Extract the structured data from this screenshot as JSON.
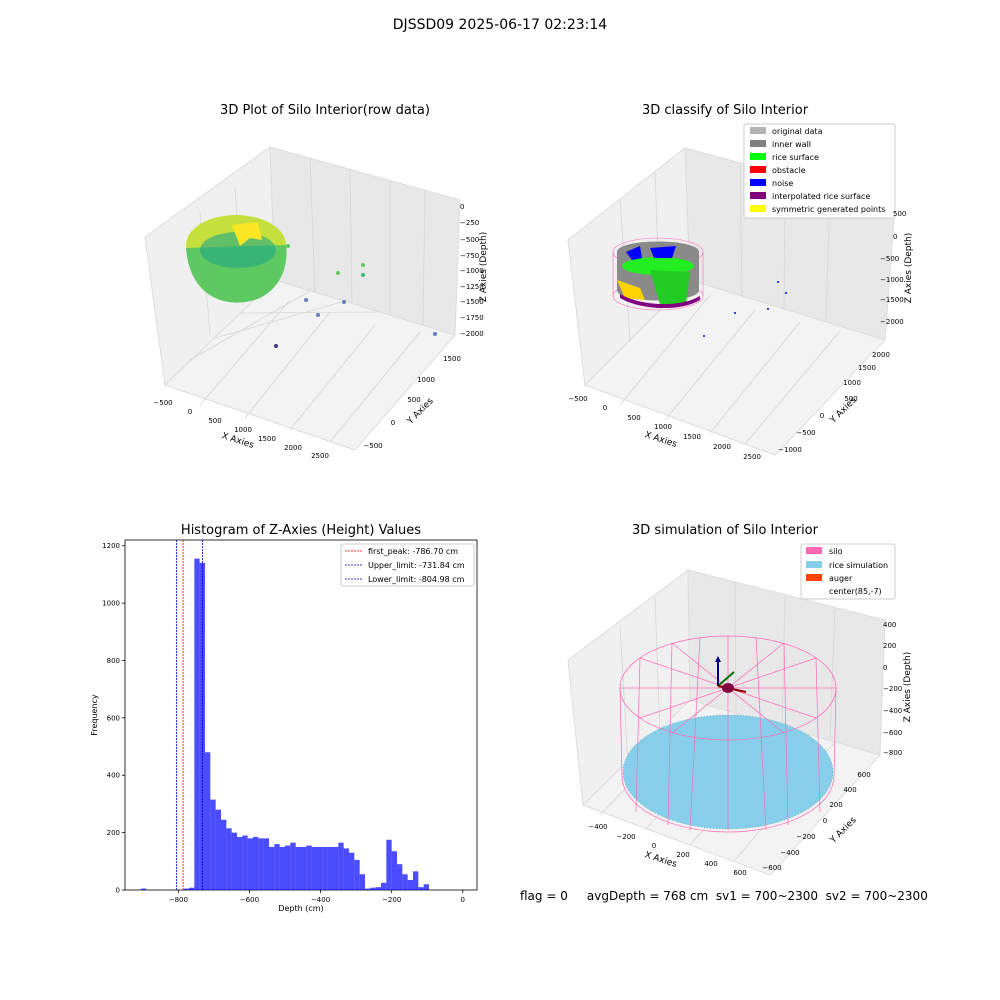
{
  "suptitle": "DJSSD09 2025-06-17 02:23:14",
  "panel1": {
    "title": "3D Plot of Silo Interior(row data)",
    "xlabel": "X Axies",
    "ylabel": "Y Axies",
    "zlabel": "Z Axies (Depth)",
    "xticks": [
      "−500",
      "0",
      "500",
      "1000",
      "1500",
      "2000",
      "2500"
    ],
    "yticks": [
      "−500",
      "0",
      "500",
      "1000",
      "1500"
    ],
    "zticks": [
      "0",
      "−250",
      "−500",
      "−750",
      "−1000",
      "−1250",
      "−1500",
      "−1750",
      "−2000"
    ]
  },
  "panel2": {
    "title": "3D classify of Silo Interior",
    "xlabel": "X Axies",
    "ylabel": "Y Axies",
    "zlabel": "Z Axies (Depth)",
    "xticks": [
      "−500",
      "0",
      "500",
      "1000",
      "1500",
      "2000",
      "2500"
    ],
    "yticks": [
      "−1000",
      "−500",
      "0",
      "500",
      "1000",
      "1500",
      "2000"
    ],
    "zticks": [
      "500",
      "0",
      "−500",
      "−1000",
      "−1500",
      "−2000"
    ],
    "legend": [
      {
        "label": "original data",
        "color": "#b3b3b3"
      },
      {
        "label": "inner wall",
        "color": "#808080"
      },
      {
        "label": "rice surface",
        "color": "#00ff00"
      },
      {
        "label": "obstacle",
        "color": "#ff0000"
      },
      {
        "label": "noise",
        "color": "#0000ff"
      },
      {
        "label": "interpolated rice surface",
        "color": "#800080"
      },
      {
        "label": "symmetric generated points",
        "color": "#ffff00"
      }
    ]
  },
  "panel4": {
    "title": "3D simulation of Silo Interior",
    "xlabel": "X Axies",
    "ylabel": "Y Axies",
    "zlabel": "Z Axies (Depth)",
    "xticks": [
      "−400",
      "−200",
      "0",
      "200",
      "400",
      "600"
    ],
    "yticks": [
      "−600",
      "−400",
      "−200",
      "0",
      "200",
      "400",
      "600"
    ],
    "zticks": [
      "400",
      "200",
      "0",
      "−200",
      "−400",
      "−600",
      "−800"
    ],
    "legend": [
      {
        "label": "silo",
        "color": "#ff69b4"
      },
      {
        "label": "rice simulation",
        "color": "#87ceeb"
      },
      {
        "label": "auger",
        "color": "#ff4500"
      },
      {
        "label": "center(85,-7)",
        "color": "#ffffff"
      }
    ]
  },
  "status": "flag = 0     avgDepth = 768 cm  sv1 = 700~2300  sv2 = 700~2300",
  "chart_data": {
    "type": "bar",
    "title": "Histogram of Z-Axies (Height) Values",
    "xlabel": "Depth (cm)",
    "ylabel": "Frequency",
    "xlim": [
      -950,
      40
    ],
    "ylim": [
      0,
      1220
    ],
    "xticks": [
      -800,
      -600,
      -400,
      -200,
      0
    ],
    "yticks": [
      0,
      200,
      400,
      600,
      800,
      1000,
      1200
    ],
    "bar_color": "#0000ff",
    "bin_start": -950,
    "bin_width": 15,
    "values": [
      0,
      0,
      0,
      5,
      0,
      0,
      0,
      0,
      0,
      0,
      0,
      5,
      8,
      1155,
      1140,
      480,
      315,
      280,
      245,
      215,
      200,
      185,
      190,
      180,
      185,
      180,
      180,
      150,
      160,
      150,
      155,
      165,
      150,
      150,
      155,
      150,
      150,
      150,
      150,
      150,
      165,
      145,
      130,
      105,
      55,
      5,
      8,
      10,
      25,
      175,
      135,
      90,
      55,
      35,
      65,
      10,
      20,
      0,
      0,
      0,
      0,
      0,
      0,
      0,
      0,
      0
    ],
    "vlines": [
      {
        "label": "first_peak: -786.70 cm",
        "x": -786.7,
        "color": "#ff0000"
      },
      {
        "label": "Upper_limit: -731.84 cm",
        "x": -731.84,
        "color": "#0000cc"
      },
      {
        "label": "Lower_limit: -804.98 cm",
        "x": -804.98,
        "color": "#0000cc"
      }
    ]
  }
}
